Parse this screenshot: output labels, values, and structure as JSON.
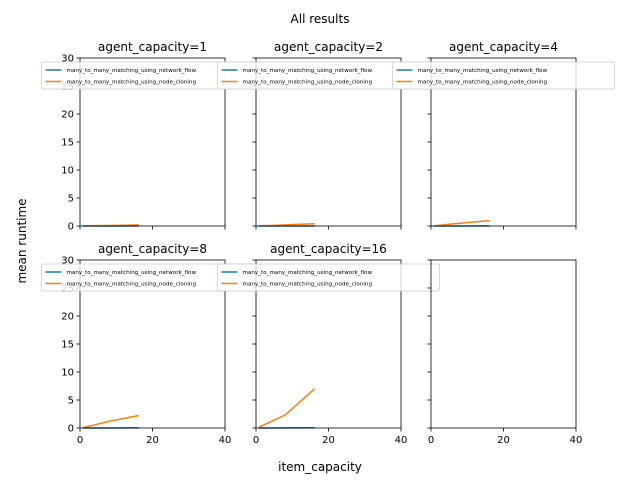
{
  "figure": {
    "title": "All results",
    "xlabel": "item_capacity",
    "ylabel": "mean runtime"
  },
  "colors": {
    "many_to_many_matching_using_network_flow": "#1f77b4",
    "many_to_many_matching_using_node_cloning": "#ff7f0e"
  },
  "chart_data": [
    {
      "type": "line",
      "title": "agent_capacity=1",
      "xlim": [
        0,
        40
      ],
      "ylim": [
        0,
        30
      ],
      "xticks": [
        0,
        20,
        40
      ],
      "yticks": [
        0,
        5,
        10,
        15,
        20,
        25,
        30
      ],
      "show_xtick_labels": false,
      "show_ytick_labels": true,
      "legend": "top",
      "series": [
        {
          "name": "many_to_many_matching_using_network_flow",
          "x": [
            1,
            2,
            4,
            8,
            16
          ],
          "y": [
            0.0,
            0.0,
            0.0,
            0.0,
            0.01
          ]
        },
        {
          "name": "many_to_many_matching_using_node_cloning",
          "x": [
            1,
            2,
            4,
            8,
            16
          ],
          "y": [
            0.02,
            0.04,
            0.06,
            0.1,
            0.2
          ]
        }
      ]
    },
    {
      "type": "line",
      "title": "agent_capacity=2",
      "xlim": [
        0,
        40
      ],
      "ylim": [
        0,
        30
      ],
      "xticks": [
        0,
        20,
        40
      ],
      "yticks": [
        0,
        5,
        10,
        15,
        20,
        25,
        30
      ],
      "show_xtick_labels": false,
      "show_ytick_labels": false,
      "legend": "top",
      "series": [
        {
          "name": "many_to_many_matching_using_network_flow",
          "x": [
            1,
            2,
            4,
            8,
            16
          ],
          "y": [
            0.0,
            0.0,
            0.0,
            0.0,
            0.01
          ]
        },
        {
          "name": "many_to_many_matching_using_node_cloning",
          "x": [
            1,
            2,
            4,
            8,
            16
          ],
          "y": [
            0.03,
            0.06,
            0.1,
            0.2,
            0.4
          ]
        }
      ]
    },
    {
      "type": "line",
      "title": "agent_capacity=4",
      "xlim": [
        0,
        40
      ],
      "ylim": [
        0,
        30
      ],
      "xticks": [
        0,
        20,
        40
      ],
      "yticks": [
        0,
        5,
        10,
        15,
        20,
        25,
        30
      ],
      "show_xtick_labels": false,
      "show_ytick_labels": false,
      "legend": "top",
      "series": [
        {
          "name": "many_to_many_matching_using_network_flow",
          "x": [
            1,
            2,
            4,
            8,
            16
          ],
          "y": [
            0.0,
            0.0,
            0.01,
            0.01,
            0.02
          ]
        },
        {
          "name": "many_to_many_matching_using_node_cloning",
          "x": [
            1,
            2,
            4,
            8,
            16
          ],
          "y": [
            0.05,
            0.12,
            0.25,
            0.5,
            0.95
          ]
        }
      ]
    },
    {
      "type": "line",
      "title": "agent_capacity=8",
      "xlim": [
        0,
        40
      ],
      "ylim": [
        0,
        30
      ],
      "xticks": [
        0,
        20,
        40
      ],
      "yticks": [
        0,
        5,
        10,
        15,
        20,
        25,
        30
      ],
      "show_xtick_labels": true,
      "show_ytick_labels": true,
      "legend": "top",
      "series": [
        {
          "name": "many_to_many_matching_using_network_flow",
          "x": [
            1,
            2,
            4,
            8,
            16
          ],
          "y": [
            0.0,
            0.0,
            0.01,
            0.01,
            0.03
          ]
        },
        {
          "name": "many_to_many_matching_using_node_cloning",
          "x": [
            1,
            2,
            4,
            8,
            16
          ],
          "y": [
            0.1,
            0.25,
            0.55,
            1.2,
            2.2
          ]
        }
      ]
    },
    {
      "type": "line",
      "title": "agent_capacity=16",
      "xlim": [
        0,
        40
      ],
      "ylim": [
        0,
        30
      ],
      "xticks": [
        0,
        20,
        40
      ],
      "yticks": [
        0,
        5,
        10,
        15,
        20,
        25,
        30
      ],
      "show_xtick_labels": true,
      "show_ytick_labels": false,
      "legend": "top",
      "series": [
        {
          "name": "many_to_many_matching_using_network_flow",
          "x": [
            1,
            2,
            4,
            8,
            16
          ],
          "y": [
            0.0,
            0.01,
            0.01,
            0.02,
            0.04
          ]
        },
        {
          "name": "many_to_many_matching_using_node_cloning",
          "x": [
            1,
            2,
            4,
            8,
            16
          ],
          "y": [
            0.2,
            0.5,
            1.1,
            2.3,
            6.9
          ]
        }
      ]
    },
    {
      "type": "line",
      "title": "",
      "xlim": [
        0,
        40
      ],
      "ylim": [
        0,
        30
      ],
      "xticks": [
        0,
        20,
        40
      ],
      "yticks": [
        0,
        5,
        10,
        15,
        20,
        25,
        30
      ],
      "show_xtick_labels": true,
      "show_ytick_labels": false,
      "legend": "none",
      "series": []
    }
  ]
}
